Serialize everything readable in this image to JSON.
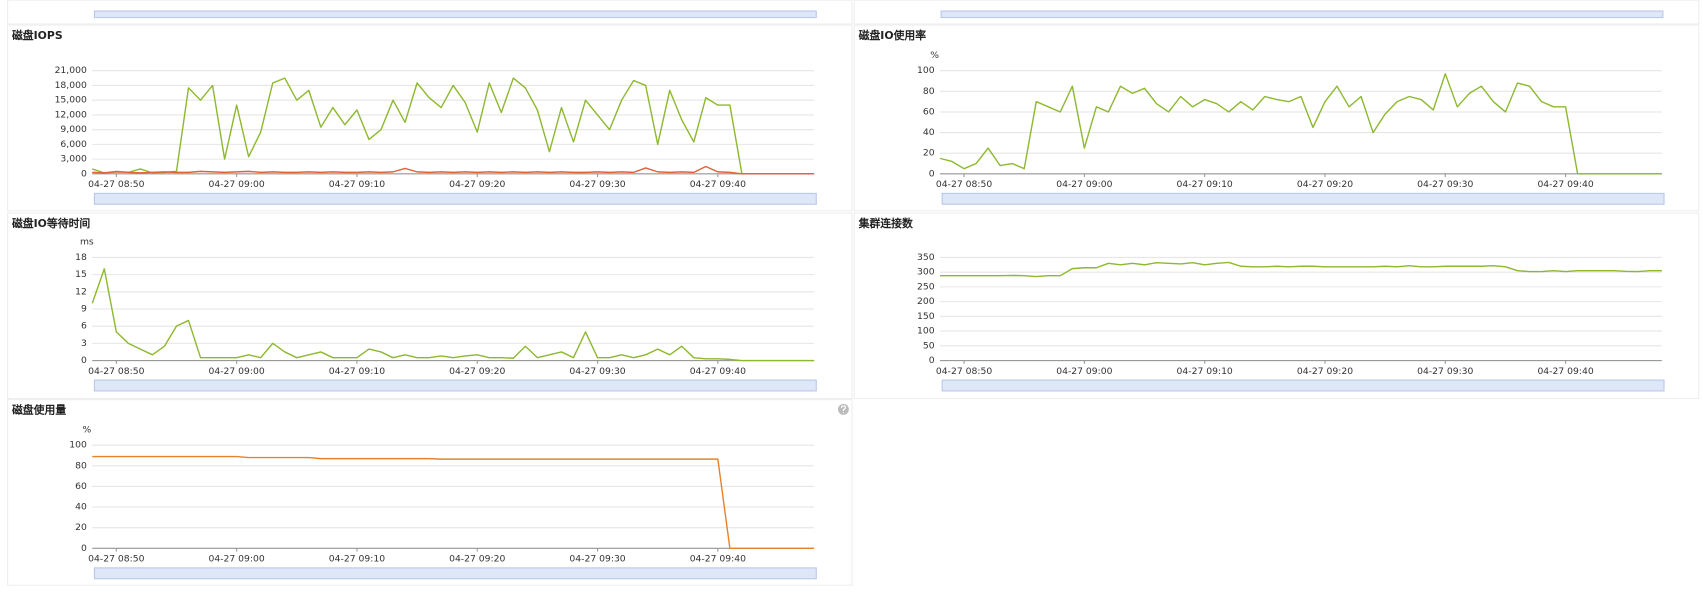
{
  "chart_data": [
    {
      "type": "line",
      "title": "磁盘IOPS",
      "x": [
        528,
        529,
        530,
        531,
        532,
        533,
        534,
        535,
        536,
        537,
        538,
        539,
        540,
        541,
        542,
        543,
        544,
        545,
        546,
        547,
        548,
        549,
        550,
        551,
        552,
        553,
        554,
        555,
        556,
        557,
        558,
        559,
        560,
        561,
        562,
        563,
        564,
        565,
        566,
        567,
        568,
        569,
        570,
        571,
        572,
        573,
        574,
        575,
        576,
        577,
        578,
        579,
        580,
        581,
        582,
        583,
        584,
        585,
        586,
        587,
        588
      ],
      "series": [
        {
          "color": "#8db92e",
          "values": [
            1000,
            200,
            500,
            300,
            1000,
            200,
            300,
            500,
            17500,
            15000,
            18000,
            3000,
            14000,
            3500,
            8500,
            18500,
            19500,
            15000,
            17000,
            9500,
            13500,
            10000,
            13000,
            7000,
            9000,
            15000,
            10500,
            18500,
            15500,
            13500,
            18000,
            14500,
            8500,
            18500,
            12500,
            19500,
            17500,
            13000,
            4500,
            13500,
            6500,
            15000,
            12000,
            9000,
            15000,
            19000,
            18000,
            6000,
            17000,
            11000,
            6500,
            15500,
            14000,
            14000,
            0,
            0,
            0,
            0,
            0,
            0,
            0
          ]
        },
        {
          "color": "#e0623a",
          "values": [
            300,
            200,
            400,
            300,
            200,
            300,
            400,
            300,
            300,
            500,
            400,
            300,
            400,
            500,
            300,
            400,
            300,
            300,
            400,
            300,
            400,
            300,
            300,
            400,
            300,
            400,
            1100,
            400,
            300,
            400,
            300,
            400,
            300,
            400,
            300,
            400,
            300,
            400,
            300,
            400,
            300,
            300,
            400,
            300,
            400,
            300,
            1200,
            400,
            300,
            400,
            300,
            1500,
            400,
            300,
            0,
            0,
            0,
            0,
            0,
            0,
            0
          ]
        }
      ],
      "xlim": [
        528,
        588
      ],
      "xticks": [
        {
          "value": 530,
          "label": "04-27 08:50"
        },
        {
          "value": 540,
          "label": "04-27 09:00"
        },
        {
          "value": 550,
          "label": "04-27 09:10"
        },
        {
          "value": 560,
          "label": "04-27 09:20"
        },
        {
          "value": 570,
          "label": "04-27 09:30"
        },
        {
          "value": 580,
          "label": "04-27 09:40"
        }
      ],
      "ylim": [
        0,
        21000
      ],
      "yticks": [
        0,
        {
          "value": 3000,
          "label": "3,000"
        },
        {
          "value": 6000,
          "label": "6,000"
        },
        {
          "value": 9000,
          "label": "9,000"
        },
        {
          "value": 12000,
          "label": "12,000"
        },
        {
          "value": 15000,
          "label": "15,000"
        },
        {
          "value": 18000,
          "label": "18,000"
        },
        {
          "value": 21000,
          "label": "21,000"
        }
      ],
      "grid": true
    },
    {
      "type": "line",
      "title": "磁盘IO使用率",
      "y_label": "%",
      "x": [
        528,
        529,
        530,
        531,
        532,
        533,
        534,
        535,
        536,
        537,
        538,
        539,
        540,
        541,
        542,
        543,
        544,
        545,
        546,
        547,
        548,
        549,
        550,
        551,
        552,
        553,
        554,
        555,
        556,
        557,
        558,
        559,
        560,
        561,
        562,
        563,
        564,
        565,
        566,
        567,
        568,
        569,
        570,
        571,
        572,
        573,
        574,
        575,
        576,
        577,
        578,
        579,
        580,
        581,
        582,
        583,
        584,
        585,
        586,
        587,
        588
      ],
      "series": [
        {
          "color": "#8db92e",
          "values": [
            15,
            12,
            5,
            10,
            25,
            8,
            10,
            5,
            70,
            65,
            60,
            85,
            25,
            65,
            60,
            85,
            78,
            83,
            68,
            60,
            75,
            65,
            72,
            68,
            60,
            70,
            62,
            75,
            72,
            70,
            75,
            45,
            70,
            85,
            65,
            75,
            40,
            58,
            70,
            75,
            72,
            62,
            97,
            65,
            78,
            85,
            70,
            60,
            88,
            85,
            70,
            65,
            65,
            0,
            0,
            0,
            0,
            0,
            0,
            0,
            0
          ]
        }
      ],
      "xlim": [
        528,
        588
      ],
      "xticks": [
        {
          "value": 530,
          "label": "04-27 08:50"
        },
        {
          "value": 540,
          "label": "04-27 09:00"
        },
        {
          "value": 550,
          "label": "04-27 09:10"
        },
        {
          "value": 560,
          "label": "04-27 09:20"
        },
        {
          "value": 570,
          "label": "04-27 09:30"
        },
        {
          "value": 580,
          "label": "04-27 09:40"
        }
      ],
      "ylim": [
        0,
        100
      ],
      "yticks": [
        0,
        20,
        40,
        60,
        80,
        100
      ],
      "grid": true
    },
    {
      "type": "line",
      "title": "磁盘IO等待时间",
      "y_label": "ms",
      "x": [
        528,
        529,
        530,
        531,
        532,
        533,
        534,
        535,
        536,
        537,
        538,
        539,
        540,
        541,
        542,
        543,
        544,
        545,
        546,
        547,
        548,
        549,
        550,
        551,
        552,
        553,
        554,
        555,
        556,
        557,
        558,
        559,
        560,
        561,
        562,
        563,
        564,
        565,
        566,
        567,
        568,
        569,
        570,
        571,
        572,
        573,
        574,
        575,
        576,
        577,
        578,
        579,
        580,
        581,
        582,
        583,
        584,
        585,
        586,
        587,
        588
      ],
      "series": [
        {
          "color": "#8db92e",
          "values": [
            10,
            16,
            5,
            3,
            2,
            1,
            2.5,
            6,
            7,
            0.5,
            0.5,
            0.5,
            0.5,
            1,
            0.5,
            3,
            1.5,
            0.5,
            1,
            1.5,
            0.5,
            0.5,
            0.5,
            2,
            1.5,
            0.5,
            1,
            0.5,
            0.5,
            0.8,
            0.5,
            0.8,
            1,
            0.5,
            0.5,
            0.4,
            2.5,
            0.5,
            1,
            1.5,
            0.5,
            5,
            0.5,
            0.5,
            1,
            0.5,
            1,
            2,
            1,
            2.5,
            0.5,
            0.3,
            0.3,
            0.2,
            0,
            0,
            0,
            0,
            0,
            0,
            0
          ]
        }
      ],
      "xlim": [
        528,
        588
      ],
      "xticks": [
        {
          "value": 530,
          "label": "04-27 08:50"
        },
        {
          "value": 540,
          "label": "04-27 09:00"
        },
        {
          "value": 550,
          "label": "04-27 09:10"
        },
        {
          "value": 560,
          "label": "04-27 09:20"
        },
        {
          "value": 570,
          "label": "04-27 09:30"
        },
        {
          "value": 580,
          "label": "04-27 09:40"
        }
      ],
      "ylim": [
        0,
        18
      ],
      "yticks": [
        0,
        3,
        6,
        9,
        12,
        15,
        18
      ],
      "grid": true
    },
    {
      "type": "line",
      "title": "集群连接数",
      "x": [
        528,
        529,
        530,
        531,
        532,
        533,
        534,
        535,
        536,
        537,
        538,
        539,
        540,
        541,
        542,
        543,
        544,
        545,
        546,
        547,
        548,
        549,
        550,
        551,
        552,
        553,
        554,
        555,
        556,
        557,
        558,
        559,
        560,
        561,
        562,
        563,
        564,
        565,
        566,
        567,
        568,
        569,
        570,
        571,
        572,
        573,
        574,
        575,
        576,
        577,
        578,
        579,
        580,
        581,
        582,
        583,
        584,
        585,
        586,
        587,
        588
      ],
      "series": [
        {
          "color": "#8db92e",
          "values": [
            288,
            288,
            288,
            288,
            288,
            288,
            289,
            288,
            285,
            288,
            288,
            312,
            315,
            315,
            330,
            325,
            330,
            325,
            332,
            330,
            328,
            332,
            325,
            330,
            333,
            320,
            318,
            318,
            320,
            318,
            320,
            320,
            318,
            318,
            318,
            318,
            318,
            320,
            318,
            322,
            318,
            318,
            320,
            320,
            320,
            320,
            322,
            318,
            305,
            302,
            302,
            305,
            302,
            305,
            305,
            305,
            305,
            303,
            302,
            305,
            305
          ]
        }
      ],
      "xlim": [
        528,
        588
      ],
      "xticks": [
        {
          "value": 530,
          "label": "04-27 08:50"
        },
        {
          "value": 540,
          "label": "04-27 09:00"
        },
        {
          "value": 550,
          "label": "04-27 09:10"
        },
        {
          "value": 560,
          "label": "04-27 09:20"
        },
        {
          "value": 570,
          "label": "04-27 09:30"
        },
        {
          "value": 580,
          "label": "04-27 09:40"
        }
      ],
      "ylim": [
        0,
        350
      ],
      "yticks": [
        0,
        50,
        100,
        150,
        200,
        250,
        300,
        350
      ],
      "grid": true
    },
    {
      "type": "line",
      "title": "磁盘使用量",
      "y_label": "%",
      "x": [
        528,
        529,
        530,
        531,
        532,
        533,
        534,
        535,
        536,
        537,
        538,
        539,
        540,
        541,
        542,
        543,
        544,
        545,
        546,
        547,
        548,
        549,
        550,
        551,
        552,
        553,
        554,
        555,
        556,
        557,
        558,
        559,
        560,
        561,
        562,
        563,
        564,
        565,
        566,
        567,
        568,
        569,
        570,
        571,
        572,
        573,
        574,
        575,
        576,
        577,
        578,
        579,
        580,
        581,
        582,
        583,
        584,
        585,
        586,
        587,
        588
      ],
      "series": [
        {
          "color": "#e8822a",
          "values": [
            89,
            89,
            89,
            89,
            89,
            89,
            89,
            89,
            89,
            89,
            89,
            89,
            89,
            88,
            88,
            88,
            88,
            88,
            88,
            87,
            87,
            87,
            87,
            87,
            87,
            87,
            87,
            87,
            87,
            86.5,
            86.5,
            86.5,
            86.5,
            86.5,
            86.5,
            86.5,
            86.5,
            86.5,
            86.5,
            86.5,
            86.5,
            86.5,
            86.5,
            86.5,
            86.5,
            86.5,
            86.5,
            86.5,
            86.5,
            86.5,
            86.5,
            86.5,
            86.5,
            0,
            0,
            0,
            0,
            0,
            0,
            0,
            0
          ]
        }
      ],
      "xlim": [
        528,
        588
      ],
      "xticks": [
        {
          "value": 530,
          "label": "04-27 08:50"
        },
        {
          "value": 540,
          "label": "04-27 09:00"
        },
        {
          "value": 550,
          "label": "04-27 09:10"
        },
        {
          "value": 560,
          "label": "04-27 09:20"
        },
        {
          "value": 570,
          "label": "04-27 09:30"
        },
        {
          "value": 580,
          "label": "04-27 09:40"
        }
      ],
      "ylim": [
        0,
        100
      ],
      "yticks": [
        0,
        20,
        40,
        60,
        80,
        100
      ],
      "grid": true
    }
  ]
}
